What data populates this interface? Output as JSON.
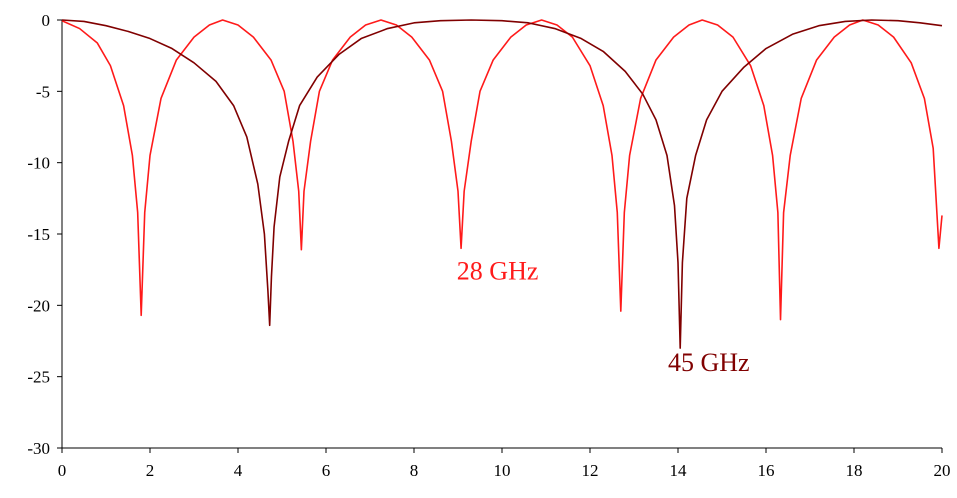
{
  "chart_data": {
    "type": "line",
    "title": "",
    "xlabel": "",
    "ylabel": "",
    "xlim": [
      0,
      20
    ],
    "ylim": [
      -30,
      0
    ],
    "x_ticks": [
      0,
      2,
      4,
      6,
      8,
      10,
      12,
      14,
      16,
      18,
      20
    ],
    "y_ticks": [
      0,
      -5,
      -10,
      -15,
      -20,
      -25,
      -30
    ],
    "grid": false,
    "legend": "none",
    "series": [
      {
        "name": "28 GHz",
        "color": "#ff1a1a",
        "points": [
          [
            0.0,
            -0.05
          ],
          [
            0.4,
            -0.6
          ],
          [
            0.8,
            -1.6
          ],
          [
            1.1,
            -3.2
          ],
          [
            1.4,
            -6.0
          ],
          [
            1.6,
            -9.5
          ],
          [
            1.72,
            -13.5
          ],
          [
            1.8,
            -20.7
          ],
          [
            1.88,
            -13.5
          ],
          [
            2.0,
            -9.5
          ],
          [
            2.25,
            -5.5
          ],
          [
            2.6,
            -2.8
          ],
          [
            3.0,
            -1.2
          ],
          [
            3.35,
            -0.35
          ],
          [
            3.65,
            0.0
          ],
          [
            4.0,
            -0.35
          ],
          [
            4.35,
            -1.2
          ],
          [
            4.75,
            -2.8
          ],
          [
            5.05,
            -5.0
          ],
          [
            5.25,
            -8.5
          ],
          [
            5.38,
            -12.0
          ],
          [
            5.44,
            -16.1
          ],
          [
            5.5,
            -12.0
          ],
          [
            5.65,
            -8.5
          ],
          [
            5.85,
            -5.0
          ],
          [
            6.15,
            -2.8
          ],
          [
            6.55,
            -1.2
          ],
          [
            6.9,
            -0.35
          ],
          [
            7.25,
            0.0
          ],
          [
            7.6,
            -0.35
          ],
          [
            7.95,
            -1.2
          ],
          [
            8.35,
            -2.8
          ],
          [
            8.65,
            -5.0
          ],
          [
            8.85,
            -8.5
          ],
          [
            9.0,
            -12.0
          ],
          [
            9.07,
            -16.0
          ],
          [
            9.14,
            -12.0
          ],
          [
            9.3,
            -8.5
          ],
          [
            9.5,
            -5.0
          ],
          [
            9.8,
            -2.8
          ],
          [
            10.2,
            -1.2
          ],
          [
            10.55,
            -0.35
          ],
          [
            10.9,
            0.0
          ],
          [
            11.25,
            -0.35
          ],
          [
            11.6,
            -1.2
          ],
          [
            12.0,
            -3.2
          ],
          [
            12.3,
            -6.0
          ],
          [
            12.5,
            -9.5
          ],
          [
            12.62,
            -13.5
          ],
          [
            12.7,
            -20.4
          ],
          [
            12.78,
            -13.5
          ],
          [
            12.9,
            -9.5
          ],
          [
            13.15,
            -5.5
          ],
          [
            13.5,
            -2.8
          ],
          [
            13.9,
            -1.2
          ],
          [
            14.25,
            -0.35
          ],
          [
            14.55,
            0.0
          ],
          [
            14.9,
            -0.35
          ],
          [
            15.25,
            -1.2
          ],
          [
            15.65,
            -3.2
          ],
          [
            15.95,
            -6.0
          ],
          [
            16.15,
            -9.5
          ],
          [
            16.27,
            -13.5
          ],
          [
            16.33,
            -21.0
          ],
          [
            16.4,
            -13.5
          ],
          [
            16.55,
            -9.5
          ],
          [
            16.8,
            -5.5
          ],
          [
            17.15,
            -2.8
          ],
          [
            17.55,
            -1.2
          ],
          [
            17.9,
            -0.35
          ],
          [
            18.2,
            0.0
          ],
          [
            18.55,
            -0.35
          ],
          [
            18.9,
            -1.2
          ],
          [
            19.3,
            -3.0
          ],
          [
            19.6,
            -5.5
          ],
          [
            19.8,
            -9.0
          ],
          [
            19.93,
            -16.0
          ],
          [
            20.0,
            -13.7
          ]
        ]
      },
      {
        "name": "45 GHz",
        "color": "#800000",
        "points": [
          [
            0.0,
            0.0
          ],
          [
            0.5,
            -0.1
          ],
          [
            1.0,
            -0.4
          ],
          [
            1.5,
            -0.8
          ],
          [
            2.0,
            -1.3
          ],
          [
            2.5,
            -2.0
          ],
          [
            3.0,
            -3.0
          ],
          [
            3.5,
            -4.3
          ],
          [
            3.9,
            -6.0
          ],
          [
            4.2,
            -8.2
          ],
          [
            4.45,
            -11.5
          ],
          [
            4.6,
            -15.0
          ],
          [
            4.68,
            -19.0
          ],
          [
            4.72,
            -21.4
          ],
          [
            4.76,
            -18.0
          ],
          [
            4.82,
            -14.5
          ],
          [
            4.95,
            -11.0
          ],
          [
            5.15,
            -8.5
          ],
          [
            5.4,
            -6.0
          ],
          [
            5.8,
            -4.0
          ],
          [
            6.3,
            -2.4
          ],
          [
            6.8,
            -1.3
          ],
          [
            7.4,
            -0.6
          ],
          [
            8.0,
            -0.2
          ],
          [
            8.6,
            -0.05
          ],
          [
            9.3,
            0.0
          ],
          [
            10.0,
            -0.05
          ],
          [
            10.6,
            -0.2
          ],
          [
            11.2,
            -0.6
          ],
          [
            11.8,
            -1.3
          ],
          [
            12.3,
            -2.2
          ],
          [
            12.8,
            -3.6
          ],
          [
            13.2,
            -5.2
          ],
          [
            13.5,
            -7.0
          ],
          [
            13.75,
            -9.5
          ],
          [
            13.92,
            -13.0
          ],
          [
            14.0,
            -17.0
          ],
          [
            14.05,
            -23.0
          ],
          [
            14.1,
            -17.0
          ],
          [
            14.2,
            -12.5
          ],
          [
            14.4,
            -9.5
          ],
          [
            14.65,
            -7.0
          ],
          [
            15.0,
            -5.0
          ],
          [
            15.5,
            -3.3
          ],
          [
            16.0,
            -2.0
          ],
          [
            16.6,
            -1.0
          ],
          [
            17.2,
            -0.4
          ],
          [
            17.8,
            -0.1
          ],
          [
            18.4,
            0.0
          ],
          [
            19.0,
            -0.05
          ],
          [
            19.5,
            -0.2
          ],
          [
            20.0,
            -0.4
          ]
        ]
      }
    ],
    "annotations": [
      {
        "text": "28 GHz",
        "color": "#ff1a1a",
        "x": 9.9,
        "y": -18.2
      },
      {
        "text": "45 GHz",
        "color": "#800000",
        "x": 14.7,
        "y": -24.6
      }
    ]
  }
}
